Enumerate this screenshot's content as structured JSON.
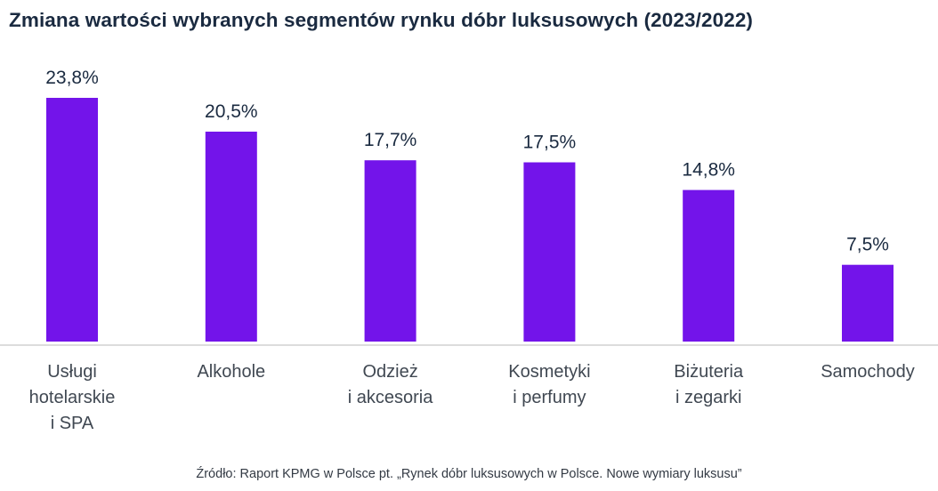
{
  "chart_data": {
    "type": "bar",
    "title": "Zmiana wartości wybranych segmentów rynku dóbr luksusowych (2023/2022)",
    "xlabel": "",
    "ylabel": "",
    "ylim": [
      0,
      25
    ],
    "grid": false,
    "legend": null,
    "bar_color": "#7314EA",
    "categories": [
      [
        "Usługi",
        "hotelarskie",
        "i SPA"
      ],
      [
        "Alkohole"
      ],
      [
        "Odzież",
        "i akcesoria"
      ],
      [
        "Kosmetyki",
        "i perfumy"
      ],
      [
        "Biżuteria",
        "i zegarki"
      ],
      [
        "Samochody"
      ]
    ],
    "values": [
      23.8,
      20.5,
      17.7,
      17.5,
      14.8,
      7.5
    ],
    "data_labels": [
      "23,8%",
      "20,5%",
      "17,7%",
      "17,5%",
      "14,8%",
      "7,5%"
    ],
    "source": "Źródło: Raport KPMG w Polsce pt. „Rynek dóbr luksusowych w Polsce. Nowe wymiary luksusu”"
  }
}
